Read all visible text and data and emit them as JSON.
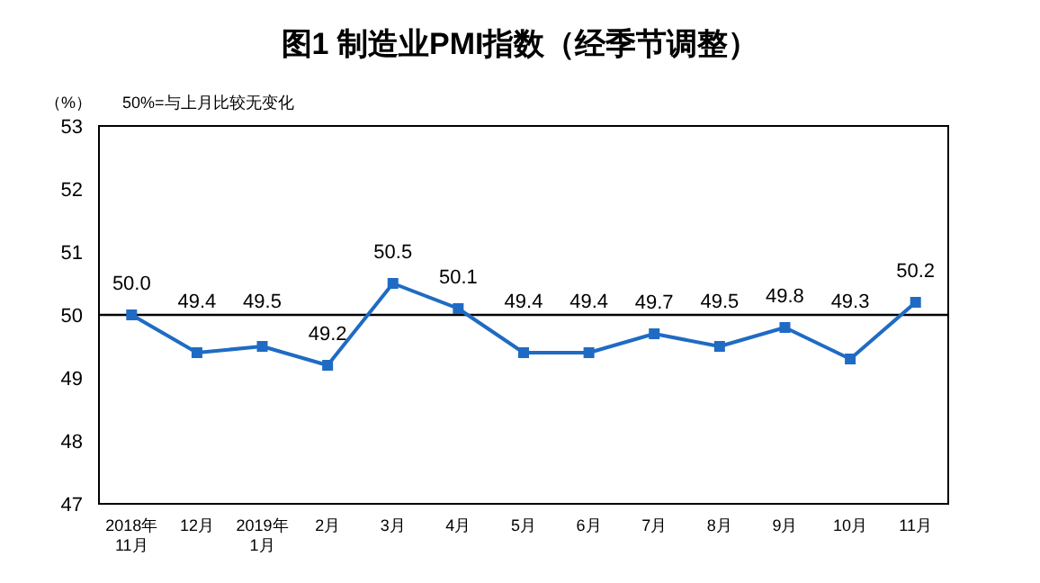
{
  "chart_data": {
    "type": "line",
    "title": "图1  制造业PMI指数（经季节调整）",
    "ylabel": "（%）",
    "annotations": [
      "50%=与上月比较无变化"
    ],
    "categories": [
      "2018年\n11月",
      "12月",
      "2019年\n1月",
      "2月",
      "3月",
      "4月",
      "5月",
      "6月",
      "7月",
      "8月",
      "9月",
      "10月",
      "11月"
    ],
    "series": [
      {
        "color": "#1f6bc4",
        "values": [
          50.0,
          49.4,
          49.5,
          49.2,
          50.5,
          50.1,
          49.4,
          49.4,
          49.7,
          49.5,
          49.8,
          49.3,
          50.2
        ]
      }
    ],
    "value_labels": [
      "50.0",
      "49.4",
      "49.5",
      "49.2",
      "50.5",
      "50.1",
      "49.4",
      "49.4",
      "49.7",
      "49.5",
      "49.8",
      "49.3",
      "50.2"
    ],
    "ylim": [
      47,
      53
    ],
    "yticks": [
      47,
      48,
      49,
      50,
      51,
      52,
      53
    ],
    "ref_lines": [
      {
        "axis": "y",
        "value": 50,
        "color": "#000000"
      }
    ],
    "marker": "square",
    "grid": false
  }
}
